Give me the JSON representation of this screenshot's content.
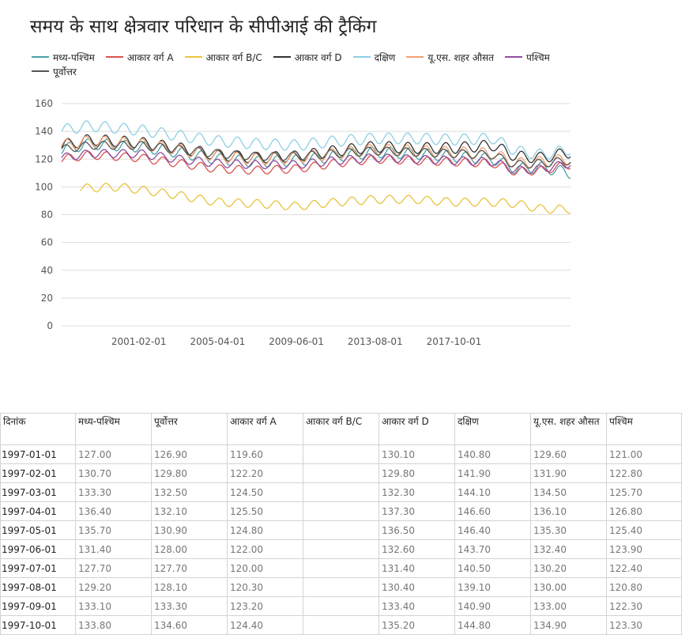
{
  "title": "समय के साथ क्षेत्रवार परिधान के सीपीआई की ट्रैकिंग",
  "chart_data": {
    "type": "line",
    "title": "समय के साथ क्षेत्रवार परिधान के सीपीआई की ट्रैकिंग",
    "x_start": "1997-01-01",
    "x_end": "2023-12-01",
    "x_frequency": "monthly",
    "x_ticks": [
      "2001-02-01",
      "2005-04-01",
      "2009-06-01",
      "2013-08-01",
      "2017-10-01"
    ],
    "y_ticks": [
      0,
      20,
      40,
      60,
      80,
      100,
      120,
      140,
      160
    ],
    "ylim": [
      0,
      160
    ],
    "grid": "horizontal",
    "legend_position": "top-left",
    "series": [
      {
        "name": "मध्य-पश्चिम",
        "color": "#4aa3a8",
        "points": [
          [
            "1997-01",
            127
          ],
          [
            "1998-07",
            131
          ],
          [
            "2001-02",
            129
          ],
          [
            "2003-03",
            125
          ],
          [
            "2005-04",
            120
          ],
          [
            "2007-05",
            118
          ],
          [
            "2009-06",
            119
          ],
          [
            "2011-07",
            122
          ],
          [
            "2013-08",
            125
          ],
          [
            "2015-09",
            124
          ],
          [
            "2017-10",
            122
          ],
          [
            "2019-11",
            120
          ],
          [
            "2021-01",
            113
          ],
          [
            "2022-06",
            114
          ],
          [
            "2023-12",
            110
          ]
        ],
        "amplitude": 4
      },
      {
        "name": "आकार वर्ग A",
        "color": "#d9534f",
        "points": [
          [
            "1997-01",
            120
          ],
          [
            "1998-07",
            123
          ],
          [
            "2001-02",
            121
          ],
          [
            "2003-03",
            117
          ],
          [
            "2005-04",
            113
          ],
          [
            "2007-05",
            112
          ],
          [
            "2009-06",
            113
          ],
          [
            "2011-07",
            117
          ],
          [
            "2013-08",
            120
          ],
          [
            "2015-09",
            119
          ],
          [
            "2017-10",
            118
          ],
          [
            "2019-11",
            117
          ],
          [
            "2021-01",
            111
          ],
          [
            "2022-06",
            112
          ],
          [
            "2023-12",
            116
          ]
        ],
        "amplitude": 3
      },
      {
        "name": "आकार वर्ग B/C",
        "color": "#e8c33c",
        "points": [
          [
            "1998-01",
            99
          ],
          [
            "2000-01",
            100
          ],
          [
            "2001-02",
            98
          ],
          [
            "2003-03",
            94
          ],
          [
            "2005-04",
            89
          ],
          [
            "2007-05",
            88
          ],
          [
            "2009-06",
            86
          ],
          [
            "2011-07",
            89
          ],
          [
            "2013-08",
            91
          ],
          [
            "2015-09",
            91
          ],
          [
            "2017-10",
            89
          ],
          [
            "2019-11",
            89
          ],
          [
            "2021-01",
            88
          ],
          [
            "2022-06",
            84
          ],
          [
            "2023-12",
            84
          ]
        ],
        "amplitude": 3
      },
      {
        "name": "आकार वर्ग D",
        "color": "#333333",
        "points": [
          [
            "1997-01",
            130
          ],
          [
            "1998-07",
            134
          ],
          [
            "2001-02",
            132
          ],
          [
            "2003-03",
            128
          ],
          [
            "2005-04",
            123
          ],
          [
            "2007-05",
            121
          ],
          [
            "2009-06",
            122
          ],
          [
            "2011-07",
            126
          ],
          [
            "2013-08",
            129
          ],
          [
            "2015-09",
            128
          ],
          [
            "2017-10",
            128
          ],
          [
            "2019-11",
            130
          ],
          [
            "2021-01",
            122
          ],
          [
            "2022-06",
            121
          ],
          [
            "2023-12",
            125
          ]
        ],
        "amplitude": 4
      },
      {
        "name": "दक्षिण",
        "color": "#8ecfe3",
        "points": [
          [
            "1997-01",
            141
          ],
          [
            "1998-07",
            144
          ],
          [
            "2001-02",
            141
          ],
          [
            "2003-03",
            137
          ],
          [
            "2005-04",
            133
          ],
          [
            "2007-05",
            131
          ],
          [
            "2009-06",
            130
          ],
          [
            "2011-07",
            133
          ],
          [
            "2013-08",
            135
          ],
          [
            "2015-09",
            135
          ],
          [
            "2017-10",
            134
          ],
          [
            "2019-11",
            135
          ],
          [
            "2021-01",
            126
          ],
          [
            "2022-06",
            123
          ],
          [
            "2023-12",
            127
          ]
        ],
        "amplitude": 4
      },
      {
        "name": "यू.एस. शहर औसत",
        "color": "#f0a070",
        "points": [
          [
            "1997-01",
            130
          ],
          [
            "1998-07",
            133
          ],
          [
            "2001-02",
            131
          ],
          [
            "2003-03",
            127
          ],
          [
            "2005-04",
            122
          ],
          [
            "2007-05",
            120
          ],
          [
            "2009-06",
            121
          ],
          [
            "2011-07",
            124
          ],
          [
            "2013-08",
            127
          ],
          [
            "2015-09",
            126
          ],
          [
            "2017-10",
            125
          ],
          [
            "2019-11",
            124
          ],
          [
            "2021-01",
            117
          ],
          [
            "2022-06",
            118
          ],
          [
            "2023-12",
            120
          ]
        ],
        "amplitude": 4
      },
      {
        "name": "पश्चिम",
        "color": "#8e4e9e",
        "points": [
          [
            "1997-01",
            121
          ],
          [
            "1998-07",
            124
          ],
          [
            "2001-02",
            124
          ],
          [
            "2003-03",
            120
          ],
          [
            "2005-04",
            117
          ],
          [
            "2007-05",
            116
          ],
          [
            "2009-06",
            116
          ],
          [
            "2011-07",
            119
          ],
          [
            "2013-08",
            121
          ],
          [
            "2015-09",
            120
          ],
          [
            "2017-10",
            119
          ],
          [
            "2019-11",
            118
          ],
          [
            "2021-01",
            112
          ],
          [
            "2022-06",
            113
          ],
          [
            "2023-12",
            117
          ]
        ],
        "amplitude": 3
      },
      {
        "name": "पूर्वोत्तर",
        "color": "#555555",
        "points": [
          [
            "1997-01",
            127
          ],
          [
            "1998-07",
            130
          ],
          [
            "2001-02",
            130
          ],
          [
            "2003-03",
            127
          ],
          [
            "2005-04",
            124
          ],
          [
            "2007-05",
            122
          ],
          [
            "2009-06",
            122
          ],
          [
            "2011-07",
            124
          ],
          [
            "2013-08",
            126
          ],
          [
            "2015-09",
            125
          ],
          [
            "2017-10",
            124
          ],
          [
            "2019-11",
            123
          ],
          [
            "2021-01",
            116
          ],
          [
            "2022-06",
            117
          ],
          [
            "2023-12",
            119
          ]
        ],
        "amplitude": 3
      }
    ]
  },
  "table": {
    "headers": [
      "दिनांक",
      "मध्य-पश्चिम",
      "पूर्वोत्तर",
      "आकार वर्ग A",
      "आकार वर्ग B/C",
      "आकार वर्ग D",
      "दक्षिण",
      "यू.एस. शहर औसत",
      "पश्चिम"
    ],
    "rows": [
      [
        "1997-01-01",
        "127.00",
        "126.90",
        "119.60",
        "",
        "130.10",
        "140.80",
        "129.60",
        "121.00"
      ],
      [
        "1997-02-01",
        "130.70",
        "129.80",
        "122.20",
        "",
        "129.80",
        "141.90",
        "131.90",
        "122.80"
      ],
      [
        "1997-03-01",
        "133.30",
        "132.50",
        "124.50",
        "",
        "132.30",
        "144.10",
        "134.50",
        "125.70"
      ],
      [
        "1997-04-01",
        "136.40",
        "132.10",
        "125.50",
        "",
        "137.30",
        "146.60",
        "136.10",
        "126.80"
      ],
      [
        "1997-05-01",
        "135.70",
        "130.90",
        "124.80",
        "",
        "136.50",
        "146.40",
        "135.30",
        "125.40"
      ],
      [
        "1997-06-01",
        "131.40",
        "128.00",
        "122.00",
        "",
        "132.60",
        "143.70",
        "132.40",
        "123.90"
      ],
      [
        "1997-07-01",
        "127.70",
        "127.70",
        "120.00",
        "",
        "131.40",
        "140.50",
        "130.20",
        "122.40"
      ],
      [
        "1997-08-01",
        "129.20",
        "128.10",
        "120.30",
        "",
        "130.40",
        "139.10",
        "130.00",
        "120.80"
      ],
      [
        "1997-09-01",
        "133.10",
        "133.30",
        "123.20",
        "",
        "133.40",
        "140.90",
        "133.00",
        "122.30"
      ],
      [
        "1997-10-01",
        "133.80",
        "134.60",
        "124.40",
        "",
        "135.20",
        "144.80",
        "134.90",
        "123.30"
      ]
    ]
  }
}
